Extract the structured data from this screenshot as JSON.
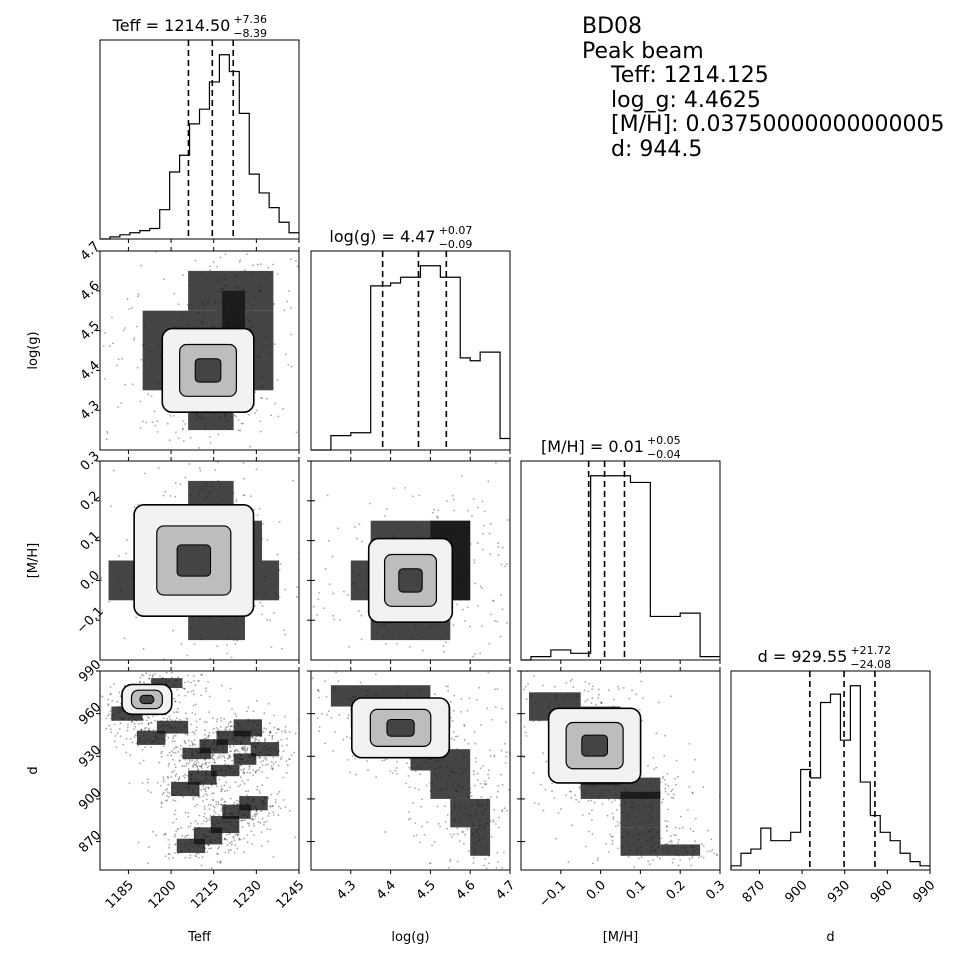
{
  "info": {
    "object": "BD08",
    "header": "Peak beam",
    "lines": [
      "Teff: 1214.125",
      "log_g: 4.4625",
      "[M/H]: 0.03750000000000005",
      "d: 944.5"
    ]
  },
  "chart_data": {
    "type": "scatter",
    "kind": "corner plot",
    "parameters": [
      {
        "key": "teff",
        "label": "Teff",
        "range": [
          1175,
          1245
        ],
        "ticks": [
          1185,
          1200,
          1215,
          1230,
          1245
        ],
        "title_main": "Teff = 1214.50",
        "title_sup": "+7.36",
        "title_sub": "−8.39",
        "quantiles": [
          1206.11,
          1214.5,
          1221.86
        ]
      },
      {
        "key": "logg",
        "label": "log(g)",
        "range": [
          4.2,
          4.7
        ],
        "ticks": [
          4.3,
          4.4,
          4.5,
          4.6,
          4.7
        ],
        "title_main": "log(g) = 4.47",
        "title_sup": "+0.07",
        "title_sub": "−0.09",
        "quantiles": [
          4.38,
          4.47,
          4.54
        ]
      },
      {
        "key": "mh",
        "label": "[M/H]",
        "range": [
          -0.2,
          0.3
        ],
        "ticks": [
          -0.1,
          0.0,
          0.1,
          0.2,
          0.3
        ],
        "tick_labels": [
          "−0.1",
          "0.0",
          "0.1",
          "0.2",
          "0.3"
        ],
        "title_main": "[M/H] = 0.01",
        "title_sup": "+0.05",
        "title_sub": "−0.04",
        "quantiles": [
          -0.03,
          0.01,
          0.06
        ]
      },
      {
        "key": "d",
        "label": "d",
        "range": [
          850,
          990
        ],
        "ticks": [
          870,
          900,
          930,
          960,
          990
        ],
        "title_main": "d = 929.55",
        "title_sup": "+21.72",
        "title_sub": "−24.08",
        "quantiles": [
          905.47,
          929.55,
          951.27
        ]
      }
    ],
    "histograms": {
      "teff": {
        "edges_start": 1175,
        "bin_width": 3.5,
        "counts": [
          0,
          1,
          2,
          3,
          4,
          5,
          14,
          32,
          40,
          55,
          62,
          75,
          88,
          80,
          60,
          31,
          22,
          15,
          8,
          3
        ]
      },
      "logg": {
        "edges_start": 4.2,
        "bin_width": 0.025,
        "counts": [
          0,
          0,
          5,
          5,
          6,
          6,
          57,
          57,
          58,
          60,
          60,
          64,
          64,
          60,
          60,
          32,
          31,
          34,
          34,
          4
        ]
      },
      "mh": {
        "edges_start": -0.2,
        "bin_width": 0.025,
        "counts": [
          0,
          1,
          1,
          3,
          3,
          2,
          2,
          55,
          55,
          55,
          55,
          53,
          53,
          13,
          13,
          13,
          14,
          14,
          1,
          1
        ]
      },
      "d": {
        "edges_start": 850,
        "bin_width": 7,
        "counts": [
          1,
          4,
          5,
          10,
          7,
          7,
          9,
          24,
          22,
          40,
          42,
          31,
          44,
          21,
          13,
          9,
          7,
          4,
          2,
          1
        ]
      }
    },
    "pair_blocks": {
      "logg_teff": [
        [
          1206,
          1222,
          4.25,
          4.3
        ],
        [
          1206,
          1222,
          4.3,
          4.35
        ],
        [
          1190,
          1236,
          4.35,
          4.45
        ],
        [
          1190,
          1236,
          4.45,
          4.55
        ],
        [
          1206,
          1236,
          4.55,
          4.65
        ],
        [
          1218,
          1226,
          4.5,
          4.6
        ]
      ],
      "mh_teff": [
        [
          1206,
          1222,
          0.15,
          0.25
        ],
        [
          1196,
          1232,
          0.05,
          0.15
        ],
        [
          1178,
          1238,
          -0.05,
          0.05
        ],
        [
          1206,
          1226,
          -0.15,
          -0.05
        ]
      ],
      "d_teff": [
        [
          1179,
          1190,
          955,
          965
        ],
        [
          1184,
          1194,
          962,
          970
        ],
        [
          1188,
          1198,
          970,
          978
        ],
        [
          1193,
          1204,
          978,
          985
        ],
        [
          1188,
          1198,
          938,
          948
        ],
        [
          1195,
          1206,
          946,
          955
        ],
        [
          1204,
          1214,
          928,
          936
        ],
        [
          1210,
          1220,
          932,
          942
        ],
        [
          1216,
          1228,
          938,
          948
        ],
        [
          1222,
          1232,
          944,
          956
        ],
        [
          1200,
          1210,
          902,
          912
        ],
        [
          1206,
          1216,
          910,
          920
        ],
        [
          1214,
          1224,
          916,
          924
        ],
        [
          1222,
          1230,
          924,
          932
        ],
        [
          1228,
          1238,
          930,
          940
        ],
        [
          1202,
          1212,
          862,
          872
        ],
        [
          1208,
          1218,
          868,
          880
        ],
        [
          1214,
          1224,
          876,
          888
        ],
        [
          1218,
          1228,
          886,
          896
        ],
        [
          1224,
          1234,
          892,
          902
        ]
      ],
      "mh_logg": [
        [
          4.3,
          4.6,
          -0.05,
          0.05
        ],
        [
          4.35,
          4.6,
          0.05,
          0.15
        ],
        [
          4.35,
          4.55,
          -0.15,
          -0.05
        ],
        [
          4.5,
          4.6,
          -0.05,
          0.15
        ]
      ],
      "d_logg": [
        [
          4.25,
          4.5,
          965,
          980
        ],
        [
          4.3,
          4.55,
          950,
          965
        ],
        [
          4.35,
          4.45,
          935,
          950
        ],
        [
          4.45,
          4.6,
          920,
          935
        ],
        [
          4.5,
          4.6,
          900,
          920
        ],
        [
          4.55,
          4.65,
          880,
          900
        ],
        [
          4.6,
          4.65,
          860,
          880
        ]
      ],
      "d_mh": [
        [
          -0.18,
          -0.05,
          955,
          975
        ],
        [
          -0.05,
          0.05,
          940,
          965
        ],
        [
          -0.05,
          0.05,
          910,
          940
        ],
        [
          -0.05,
          0.15,
          900,
          915
        ],
        [
          0.05,
          0.15,
          880,
          905
        ],
        [
          0.05,
          0.15,
          860,
          880
        ],
        [
          0.15,
          0.25,
          860,
          868
        ]
      ]
    }
  }
}
